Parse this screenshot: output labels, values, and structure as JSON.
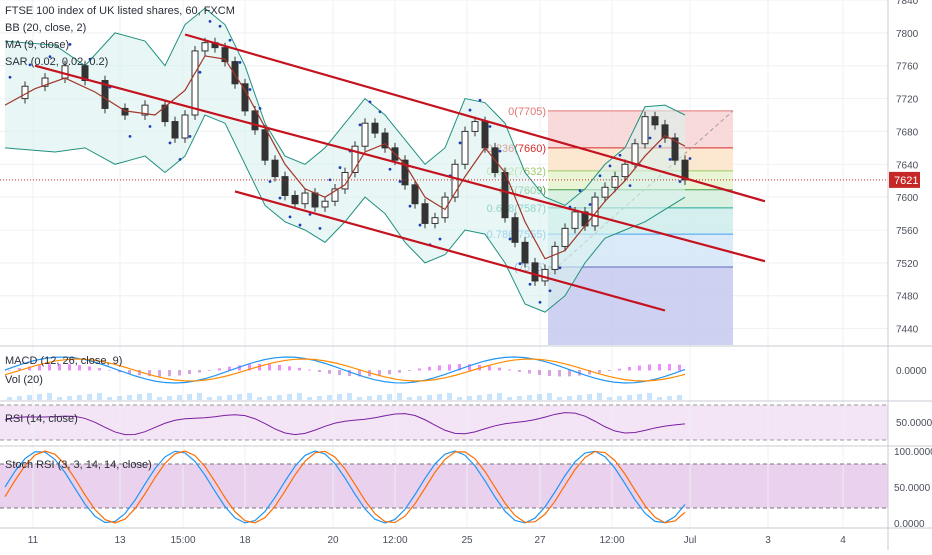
{
  "chart_data": {
    "type": "line",
    "title": "FTSE 100 index of UK listed shares, 60, FXCM",
    "indicators": [
      "BB (20, close, 2)",
      "MA (9, close)",
      "SAR (0.02, 0.02, 0.2)"
    ],
    "last_price": "7621",
    "ylim": [
      7420,
      7840
    ],
    "y_ticks": [
      "7840",
      "7800",
      "7760",
      "7720",
      "7680",
      "7640",
      "7600",
      "7560",
      "7520",
      "7480",
      "7440"
    ],
    "x_ticks": [
      "11",
      "13",
      "15:00",
      "18",
      "20",
      "12:00",
      "25",
      "27",
      "12:00",
      "Jul",
      "3",
      "4"
    ],
    "price": [
      [
        0,
        7720
      ],
      [
        2,
        7735
      ],
      [
        4,
        7745
      ],
      [
        6,
        7760
      ],
      [
        8,
        7742
      ],
      [
        10,
        7708
      ],
      [
        12,
        7700
      ],
      [
        14,
        7712
      ],
      [
        16,
        7692
      ],
      [
        17,
        7672
      ],
      [
        18,
        7700
      ],
      [
        19,
        7778
      ],
      [
        20,
        7788
      ],
      [
        21,
        7782
      ],
      [
        22,
        7765
      ],
      [
        23,
        7738
      ],
      [
        24,
        7705
      ],
      [
        25,
        7682
      ],
      [
        26,
        7645
      ],
      [
        27,
        7625
      ],
      [
        28,
        7602
      ],
      [
        29,
        7592
      ],
      [
        30,
        7605
      ],
      [
        31,
        7588
      ],
      [
        32,
        7595
      ],
      [
        33,
        7610
      ],
      [
        34,
        7630
      ],
      [
        35,
        7662
      ],
      [
        36,
        7690
      ],
      [
        37,
        7678
      ],
      [
        38,
        7660
      ],
      [
        39,
        7645
      ],
      [
        40,
        7615
      ],
      [
        41,
        7592
      ],
      [
        42,
        7568
      ],
      [
        43,
        7575
      ],
      [
        44,
        7600
      ],
      [
        45,
        7640
      ],
      [
        46,
        7680
      ],
      [
        47,
        7692
      ],
      [
        48,
        7660
      ],
      [
        49,
        7630
      ],
      [
        50,
        7575
      ],
      [
        51,
        7545
      ],
      [
        52,
        7520
      ],
      [
        53,
        7498
      ],
      [
        54,
        7512
      ],
      [
        55,
        7540
      ],
      [
        56,
        7562
      ],
      [
        57,
        7582
      ],
      [
        58,
        7565
      ],
      [
        59,
        7600
      ],
      [
        60,
        7612
      ],
      [
        61,
        7625
      ],
      [
        62,
        7640
      ],
      [
        63,
        7665
      ],
      [
        64,
        7698
      ],
      [
        65,
        7688
      ],
      [
        66,
        7672
      ],
      [
        67,
        7645
      ],
      [
        68,
        7621
      ]
    ],
    "bb_upper": [
      [
        0,
        7790
      ],
      [
        5,
        7785
      ],
      [
        8,
        7760
      ],
      [
        11,
        7800
      ],
      [
        14,
        7790
      ],
      [
        16,
        7760
      ],
      [
        18,
        7810
      ],
      [
        20,
        7830
      ],
      [
        22,
        7810
      ],
      [
        24,
        7760
      ],
      [
        26,
        7690
      ],
      [
        28,
        7650
      ],
      [
        30,
        7640
      ],
      [
        32,
        7660
      ],
      [
        34,
        7690
      ],
      [
        36,
        7720
      ],
      [
        38,
        7700
      ],
      [
        40,
        7670
      ],
      [
        42,
        7640
      ],
      [
        44,
        7660
      ],
      [
        46,
        7720
      ],
      [
        48,
        7715
      ],
      [
        50,
        7690
      ],
      [
        52,
        7630
      ],
      [
        54,
        7600
      ],
      [
        56,
        7590
      ],
      [
        58,
        7610
      ],
      [
        60,
        7640
      ],
      [
        62,
        7660
      ],
      [
        64,
        7710
      ],
      [
        66,
        7712
      ],
      [
        68,
        7700
      ]
    ],
    "bb_lower": [
      [
        0,
        7660
      ],
      [
        5,
        7655
      ],
      [
        8,
        7660
      ],
      [
        11,
        7640
      ],
      [
        14,
        7650
      ],
      [
        16,
        7630
      ],
      [
        18,
        7650
      ],
      [
        20,
        7700
      ],
      [
        22,
        7690
      ],
      [
        24,
        7640
      ],
      [
        26,
        7590
      ],
      [
        28,
        7570
      ],
      [
        30,
        7560
      ],
      [
        32,
        7545
      ],
      [
        34,
        7570
      ],
      [
        36,
        7600
      ],
      [
        38,
        7580
      ],
      [
        40,
        7545
      ],
      [
        42,
        7520
      ],
      [
        44,
        7530
      ],
      [
        46,
        7560
      ],
      [
        48,
        7555
      ],
      [
        50,
        7520
      ],
      [
        52,
        7470
      ],
      [
        54,
        7460
      ],
      [
        56,
        7480
      ],
      [
        58,
        7520
      ],
      [
        60,
        7550
      ],
      [
        62,
        7560
      ],
      [
        64,
        7570
      ],
      [
        66,
        7585
      ],
      [
        68,
        7600
      ]
    ],
    "ma9": [
      [
        0,
        7712
      ],
      [
        3,
        7732
      ],
      [
        6,
        7745
      ],
      [
        9,
        7728
      ],
      [
        12,
        7705
      ],
      [
        15,
        7700
      ],
      [
        18,
        7730
      ],
      [
        20,
        7772
      ],
      [
        22,
        7768
      ],
      [
        24,
        7730
      ],
      [
        26,
        7685
      ],
      [
        28,
        7640
      ],
      [
        30,
        7610
      ],
      [
        32,
        7600
      ],
      [
        34,
        7615
      ],
      [
        36,
        7655
      ],
      [
        38,
        7665
      ],
      [
        40,
        7640
      ],
      [
        42,
        7600
      ],
      [
        44,
        7585
      ],
      [
        46,
        7625
      ],
      [
        48,
        7660
      ],
      [
        50,
        7630
      ],
      [
        52,
        7570
      ],
      [
        54,
        7525
      ],
      [
        56,
        7535
      ],
      [
        58,
        7565
      ],
      [
        60,
        7595
      ],
      [
        62,
        7620
      ],
      [
        64,
        7650
      ],
      [
        66,
        7675
      ],
      [
        68,
        7662
      ]
    ],
    "channel_lines": [
      {
        "from": [
          18,
          7798
        ],
        "to": [
          76,
          7595
        ]
      },
      {
        "from": [
          3,
          7760
        ],
        "to": [
          76,
          7522
        ]
      },
      {
        "from": [
          23,
          7607
        ],
        "to": [
          66,
          7462
        ]
      }
    ],
    "fibonacci": {
      "levels": [
        {
          "label": "0(7705)",
          "value": 7705,
          "color": "#e57373"
        },
        {
          "label": "0.236(7660)",
          "value": 7660,
          "color": "#d32f2f"
        },
        {
          "label": "0.382(7632)",
          "value": 7632,
          "color": "#9ccc65"
        },
        {
          "label": "0.5(7609)",
          "value": 7609,
          "color": "#43a047"
        },
        {
          "label": "0.618(7587)",
          "value": 7587,
          "color": "#26a69a"
        },
        {
          "label": "0.786(7555)",
          "value": 7555,
          "color": "#42a5f5"
        },
        {
          "label": "(7515)",
          "value": 7515,
          "color": "#5c6bc0"
        }
      ]
    },
    "macd_label": "MACD (12, 26, close, 9)",
    "macd_tick": "0.0000",
    "vol_label": "Vol (20)",
    "rsi_label": "RSI (14, close)",
    "rsi_tick": "50.0000",
    "stoch_label": "Stoch RSI (3, 3, 14, 14, close)",
    "stoch_ticks": [
      "100.0000",
      "50.0000",
      "0.0000"
    ],
    "colors": {
      "bb_fill": "#d9f2ef",
      "bb_line": "#20907f",
      "ma": "#a3362a",
      "sar": "#1e3fb8",
      "channel": "#c4121f",
      "macd": "#2196f3",
      "signal": "#ff8c00",
      "rsi": "#7b1fa2",
      "stoch_k": "#2196f3",
      "stoch_d": "#ff6d00"
    }
  }
}
